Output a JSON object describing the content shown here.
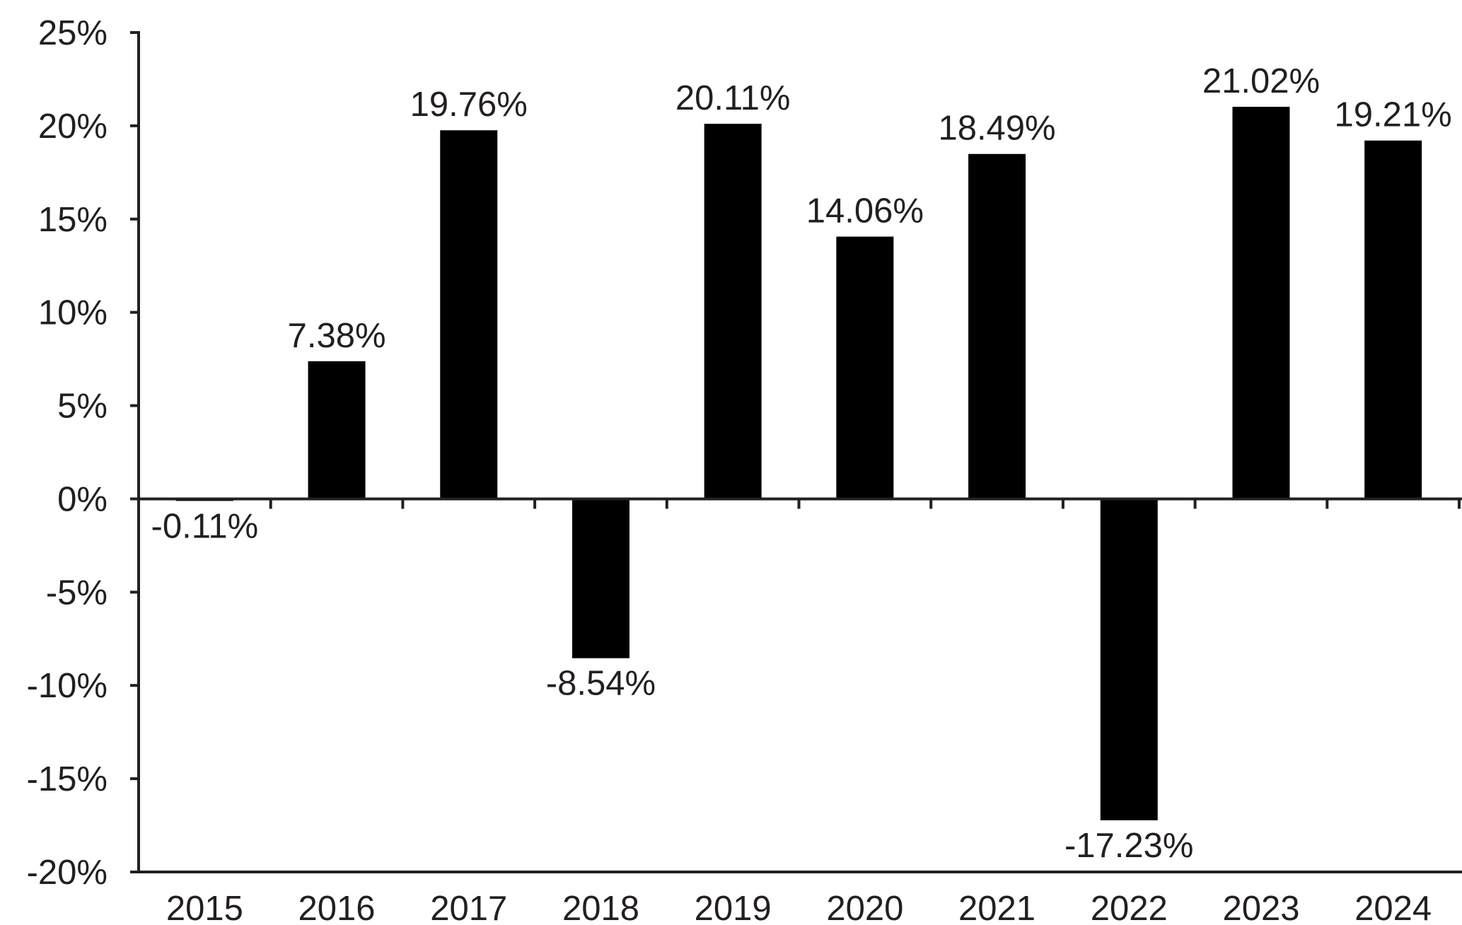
{
  "chart_data": {
    "type": "bar",
    "categories": [
      "2015",
      "2016",
      "2017",
      "2018",
      "2019",
      "2020",
      "2021",
      "2022",
      "2023",
      "2024"
    ],
    "values": [
      -0.11,
      7.38,
      19.76,
      -8.54,
      20.11,
      14.06,
      18.49,
      -17.23,
      21.02,
      19.21
    ],
    "data_labels": [
      "-0.11%",
      "7.38%",
      "19.76%",
      "-8.54%",
      "20.11%",
      "14.06%",
      "18.49%",
      "-17.23%",
      "21.02%",
      "19.21%"
    ],
    "y_ticks": [
      25,
      20,
      15,
      10,
      5,
      0,
      -5,
      -10,
      -15,
      -20
    ],
    "y_tick_labels": [
      "25%",
      "20%",
      "15%",
      "10%",
      "5%",
      "0%",
      "-5%",
      "-10%",
      "-15%",
      "-20%"
    ],
    "ylim": [
      -20,
      25
    ],
    "title": "",
    "xlabel": "",
    "ylabel": "",
    "grid": false,
    "legend": "none",
    "bar_color": "#000000",
    "axis_color": "#231f20",
    "text_color": "#231f20"
  }
}
